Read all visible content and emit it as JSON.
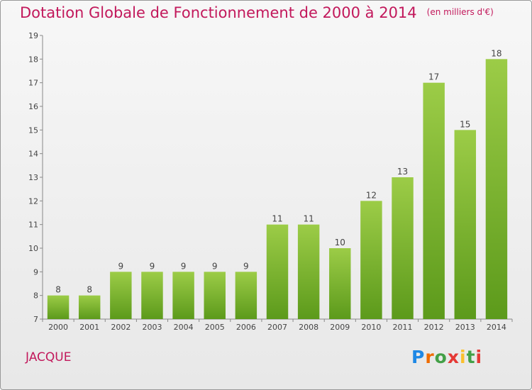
{
  "header": {
    "title": "Dotation Globale de Fonctionnement de 2000 à 2014",
    "unit": "(en milliers d'€)"
  },
  "footer": {
    "commune": "JACQUE",
    "logo_text": "Proxiti"
  },
  "colors": {
    "title": "#c2185b",
    "bar_top": "#9ccc47",
    "bar_bottom": "#5c9a1b"
  },
  "chart_data": {
    "type": "bar",
    "title": "Dotation Globale de Fonctionnement de 2000 à 2014",
    "subtitle": "(en milliers d'€)",
    "xlabel": "",
    "ylabel": "",
    "categories": [
      "2000",
      "2001",
      "2002",
      "2003",
      "2004",
      "2005",
      "2006",
      "2007",
      "2008",
      "2009",
      "2010",
      "2011",
      "2012",
      "2013",
      "2014"
    ],
    "values": [
      8,
      8,
      9,
      9,
      9,
      9,
      9,
      11,
      11,
      10,
      12,
      13,
      17,
      15,
      18
    ],
    "ylim": [
      7,
      19
    ],
    "yticks": [
      7,
      8,
      9,
      10,
      11,
      12,
      13,
      14,
      15,
      16,
      17,
      18,
      19
    ],
    "grid": false,
    "legend": "none",
    "data_labels": true
  }
}
